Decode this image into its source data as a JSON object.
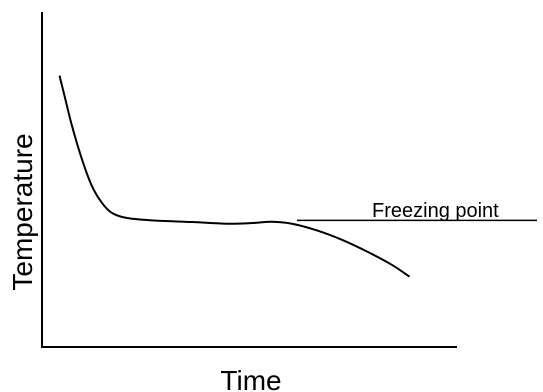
{
  "chart_data": {
    "type": "line",
    "title": "",
    "xlabel": "Time",
    "ylabel": "Temperature",
    "xlim": [
      0,
      100
    ],
    "ylim": [
      0,
      100
    ],
    "grid": false,
    "ticks": false,
    "series": [
      {
        "values": [
          {
            "x": 3.5,
            "y": 81
          },
          {
            "x": 4.5,
            "y": 75
          },
          {
            "x": 6,
            "y": 66
          },
          {
            "x": 8,
            "y": 56
          },
          {
            "x": 10,
            "y": 48
          },
          {
            "x": 12,
            "y": 43
          },
          {
            "x": 14,
            "y": 40
          },
          {
            "x": 17,
            "y": 38.5
          },
          {
            "x": 22,
            "y": 37.8
          },
          {
            "x": 30,
            "y": 37.3
          },
          {
            "x": 37,
            "y": 36.8
          },
          {
            "x": 42,
            "y": 37
          },
          {
            "x": 46,
            "y": 37.4
          },
          {
            "x": 50,
            "y": 36.8
          },
          {
            "x": 55,
            "y": 34.8
          },
          {
            "x": 60,
            "y": 32
          },
          {
            "x": 65,
            "y": 28.5
          },
          {
            "x": 70,
            "y": 24.5
          },
          {
            "x": 73.5,
            "y": 21
          }
        ]
      }
    ],
    "annotations": [
      {
        "text": "Freezing point",
        "line": {
          "x_start": 51,
          "x_end": 99,
          "y": 37.8
        }
      }
    ]
  }
}
